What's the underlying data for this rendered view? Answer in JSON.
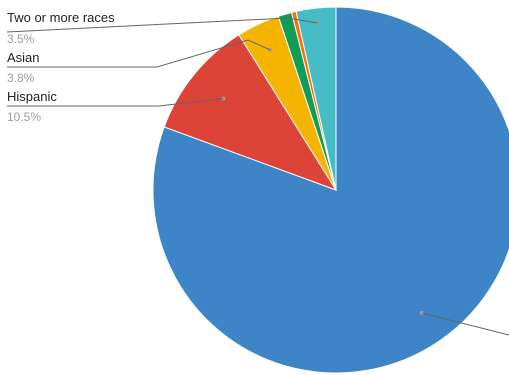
{
  "chart_data": {
    "type": "pie",
    "title": "",
    "legend": "none",
    "slices": [
      {
        "label": "",
        "value": 80.6,
        "color": "#3d85c6"
      },
      {
        "label": "Hispanic",
        "value": 10.5,
        "value_label": "10.5%",
        "color": "#db4437"
      },
      {
        "label": "Asian",
        "value": 3.8,
        "value_label": "3.8%",
        "color": "#f4b400"
      },
      {
        "label": "",
        "value": 1.2,
        "color": "#0f9d58"
      },
      {
        "label": "",
        "value": 0.4,
        "color": "#ff6d00"
      },
      {
        "label": "Two or more races",
        "value": 3.5,
        "value_label": "3.5%",
        "color": "#46bdc6"
      }
    ]
  }
}
